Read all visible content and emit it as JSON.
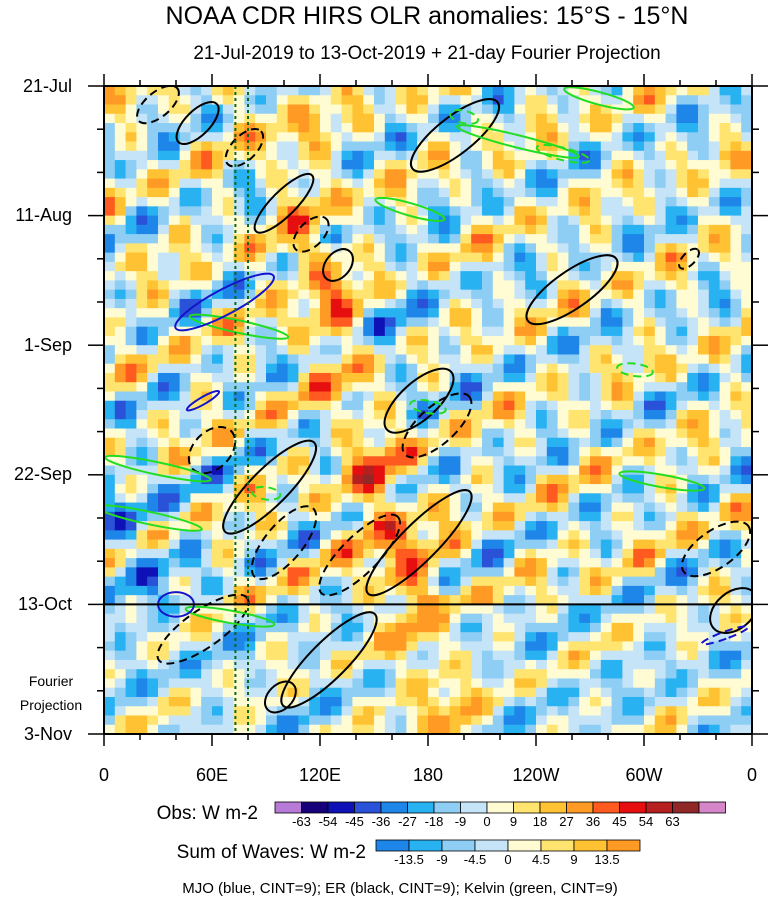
{
  "chart_data": {
    "type": "heatmap",
    "title": "NOAA CDR HIRS OLR anomalies: 15°S - 15°N",
    "subtitle": "21-Jul-2019 to 13-Oct-2019 + 21-day Fourier Projection",
    "x_tick_labels": [
      "0",
      "60E",
      "120E",
      "180",
      "120W",
      "60W",
      "0"
    ],
    "x_tick_lon": [
      0,
      60,
      120,
      180,
      240,
      300,
      360
    ],
    "y_tick_labels": [
      "21-Jul",
      "11-Aug",
      "1-Sep",
      "22-Sep",
      "13-Oct",
      "3-Nov"
    ],
    "y_tick_days": [
      0,
      21,
      42,
      63,
      84,
      105
    ],
    "projection_label_line1": "Fourier",
    "projection_label_line2": "Projection",
    "projection_start_day": 84,
    "total_days": 105,
    "colorbar_obs": {
      "label": "Obs: W m-2",
      "ticks": [
        "-63",
        "-54",
        "-45",
        "-36",
        "-27",
        "-18",
        "-9",
        "0",
        "9",
        "18",
        "27",
        "36",
        "45",
        "54",
        "63"
      ],
      "colors": [
        "#b77ad7",
        "#16007a",
        "#0e12b6",
        "#2a52d8",
        "#1e86e9",
        "#28b2f2",
        "#8ecef4",
        "#c6e4f7",
        "#fffbd3",
        "#ffe46f",
        "#ffc232",
        "#ff9a24",
        "#ff5a1f",
        "#e60e0f",
        "#b61f1f",
        "#902828",
        "#d486c9"
      ]
    },
    "colorbar_waves": {
      "label": "Sum of Waves: W m-2",
      "ticks": [
        "-13.5",
        "-9",
        "-4.5",
        "0",
        "4.5",
        "9",
        "13.5"
      ],
      "colors": [
        "#1e86e9",
        "#28b2f2",
        "#8ecef4",
        "#c6e4f7",
        "#fffbd3",
        "#ffe46f",
        "#ffc232",
        "#ff9a24"
      ]
    },
    "footnote": "MJO (blue, CINT=9); ER (black, CINT=9); Kelvin (green, CINT=9)",
    "reference_lon": [
      73,
      80
    ],
    "mjo_contours": [
      {
        "lon": 67,
        "day": 35,
        "rlon": 7,
        "rdays": 9,
        "angle": 62,
        "dashed": false
      },
      {
        "lon": 55,
        "day": 51,
        "rlon": 2,
        "rdays": 3,
        "angle": 60,
        "dashed": false
      },
      {
        "lon": 345,
        "day": 89,
        "rlon": 2,
        "rdays": 4,
        "angle": 70,
        "dashed": true
      },
      {
        "lon": 40,
        "day": 84,
        "rlon": 10,
        "rdays": 2,
        "angle": 0,
        "dashed": false
      }
    ],
    "er_contours": [
      {
        "lon": 30,
        "day": 3,
        "rlon": 14,
        "rdays": 2,
        "angle": -40,
        "dashed": true
      },
      {
        "lon": 52,
        "day": 6,
        "rlon": 15,
        "rdays": 2,
        "angle": -45,
        "dashed": false
      },
      {
        "lon": 78,
        "day": 10,
        "rlon": 13,
        "rdays": 2,
        "angle": -45,
        "dashed": true
      },
      {
        "lon": 100,
        "day": 19,
        "rlon": 22,
        "rdays": 2,
        "angle": -45,
        "dashed": false
      },
      {
        "lon": 115,
        "day": 24,
        "rlon": 12,
        "rdays": 2,
        "angle": -45,
        "dashed": true
      },
      {
        "lon": 130,
        "day": 29,
        "rlon": 10,
        "rdays": 2,
        "angle": -50,
        "dashed": false
      },
      {
        "lon": 195,
        "day": 8,
        "rlon": 30,
        "rdays": 3,
        "angle": -38,
        "dashed": false
      },
      {
        "lon": 260,
        "day": 33,
        "rlon": 30,
        "rdays": 3,
        "angle": -35,
        "dashed": false
      },
      {
        "lon": 325,
        "day": 28,
        "rlon": 7,
        "rdays": 1,
        "angle": -45,
        "dashed": true
      },
      {
        "lon": 175,
        "day": 51,
        "rlon": 24,
        "rdays": 3,
        "angle": -42,
        "dashed": false
      },
      {
        "lon": 185,
        "day": 55,
        "rlon": 24,
        "rdays": 3,
        "angle": -42,
        "dashed": true
      },
      {
        "lon": 60,
        "day": 59,
        "rlon": 15,
        "rdays": 3,
        "angle": -45,
        "dashed": true
      },
      {
        "lon": 92,
        "day": 65,
        "rlon": 35,
        "rdays": 3,
        "angle": -45,
        "dashed": false
      },
      {
        "lon": 100,
        "day": 74,
        "rlon": 25,
        "rdays": 3,
        "angle": -50,
        "dashed": true
      },
      {
        "lon": 142,
        "day": 76,
        "rlon": 30,
        "rdays": 3,
        "angle": -45,
        "dashed": true
      },
      {
        "lon": 175,
        "day": 74,
        "rlon": 40,
        "rdays": 3,
        "angle": -45,
        "dashed": false
      },
      {
        "lon": 55,
        "day": 88,
        "rlon": 30,
        "rdays": 3,
        "angle": -35,
        "dashed": true
      },
      {
        "lon": 125,
        "day": 93,
        "rlon": 36,
        "rdays": 3,
        "angle": -45,
        "dashed": false
      },
      {
        "lon": 98,
        "day": 99,
        "rlon": 10,
        "rdays": 2,
        "angle": -45,
        "dashed": false
      },
      {
        "lon": 340,
        "day": 75,
        "rlon": 22,
        "rdays": 3,
        "angle": -35,
        "dashed": true
      },
      {
        "lon": 350,
        "day": 85,
        "rlon": 15,
        "rdays": 3,
        "angle": -40,
        "dashed": false
      }
    ],
    "kelvin_contours": [
      {
        "lon": 275,
        "day": 2,
        "rlon": 20,
        "rdays": 1,
        "angle": 15,
        "dashed": false
      },
      {
        "lon": 230,
        "day": 9,
        "rlon": 35,
        "rdays": 1,
        "angle": 14,
        "dashed": false
      },
      {
        "lon": 200,
        "day": 5,
        "rlon": 8,
        "rdays": 1,
        "angle": 14,
        "dashed": true
      },
      {
        "lon": 255,
        "day": 11,
        "rlon": 15,
        "rdays": 1,
        "angle": 14,
        "dashed": true
      },
      {
        "lon": 170,
        "day": 20,
        "rlon": 20,
        "rdays": 1,
        "angle": 16,
        "dashed": false
      },
      {
        "lon": 75,
        "day": 39,
        "rlon": 28,
        "rdays": 1,
        "angle": 12,
        "dashed": false
      },
      {
        "lon": 180,
        "day": 52,
        "rlon": 10,
        "rdays": 1,
        "angle": 10,
        "dashed": true
      },
      {
        "lon": 295,
        "day": 46,
        "rlon": 10,
        "rdays": 1,
        "angle": 8,
        "dashed": true
      },
      {
        "lon": 310,
        "day": 64,
        "rlon": 24,
        "rdays": 1,
        "angle": 10,
        "dashed": false
      },
      {
        "lon": 30,
        "day": 62,
        "rlon": 30,
        "rdays": 1,
        "angle": 12,
        "dashed": false
      },
      {
        "lon": 25,
        "day": 70,
        "rlon": 30,
        "rdays": 1,
        "angle": 12,
        "dashed": false
      },
      {
        "lon": 90,
        "day": 66,
        "rlon": 8,
        "rdays": 1,
        "angle": 8,
        "dashed": true
      },
      {
        "lon": 70,
        "day": 86,
        "rlon": 25,
        "rdays": 1,
        "angle": 10,
        "dashed": false
      }
    ]
  }
}
